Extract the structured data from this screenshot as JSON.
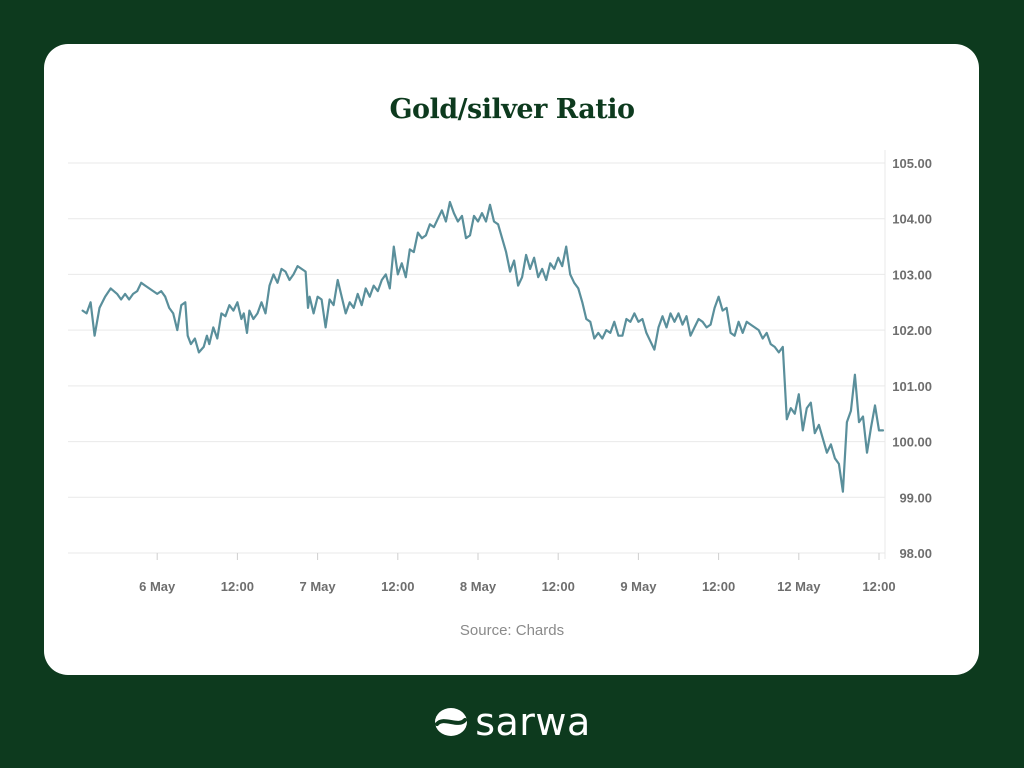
{
  "source": "Source: Chards",
  "brand": {
    "name": "sarwa",
    "logo_icon": "sarwa-logo-icon"
  },
  "colors": {
    "background": "#0d3a1e",
    "card": "#ffffff",
    "title": "#0d3a1e",
    "line": "#5a8f9b",
    "grid": "#e9e9e9",
    "tick_text": "#6e6e6e"
  },
  "chart_data": {
    "type": "line",
    "title": "Gold/silver Ratio",
    "xlabel": "",
    "ylabel": "",
    "y_axis_position": "right",
    "grid": true,
    "ylim": [
      98,
      105
    ],
    "yticks": [
      "98.00",
      "99.00",
      "100.00",
      "101.00",
      "102.00",
      "103.00",
      "104.00",
      "105.00"
    ],
    "xlim": [
      0,
      10
    ],
    "xticks": [
      {
        "label": "6 May",
        "x": 1.0
      },
      {
        "label": "12:00",
        "x": 2.0
      },
      {
        "label": "7 May",
        "x": 3.0
      },
      {
        "label": "12:00",
        "x": 4.0
      },
      {
        "label": "8 May",
        "x": 5.0
      },
      {
        "label": "12:00",
        "x": 6.0
      },
      {
        "label": "9 May",
        "x": 7.0
      },
      {
        "label": "12:00",
        "x": 8.0
      },
      {
        "label": "12 May",
        "x": 9.0
      },
      {
        "label": "12:00",
        "x": 10.0
      }
    ],
    "series": [
      {
        "values": [
          [
            0.07,
            102.35
          ],
          [
            0.12,
            102.3
          ],
          [
            0.17,
            102.5
          ],
          [
            0.22,
            101.9
          ],
          [
            0.28,
            102.4
          ],
          [
            0.35,
            102.6
          ],
          [
            0.42,
            102.75
          ],
          [
            0.5,
            102.65
          ],
          [
            0.55,
            102.55
          ],
          [
            0.6,
            102.65
          ],
          [
            0.65,
            102.55
          ],
          [
            0.7,
            102.65
          ],
          [
            0.75,
            102.7
          ],
          [
            0.8,
            102.85
          ],
          [
            0.85,
            102.8
          ],
          [
            0.9,
            102.75
          ],
          [
            0.95,
            102.7
          ],
          [
            1.0,
            102.65
          ],
          [
            1.05,
            102.7
          ],
          [
            1.1,
            102.6
          ],
          [
            1.15,
            102.4
          ],
          [
            1.2,
            102.3
          ],
          [
            1.25,
            102.0
          ],
          [
            1.3,
            102.45
          ],
          [
            1.35,
            102.5
          ],
          [
            1.38,
            101.9
          ],
          [
            1.42,
            101.75
          ],
          [
            1.47,
            101.85
          ],
          [
            1.52,
            101.6
          ],
          [
            1.58,
            101.7
          ],
          [
            1.62,
            101.9
          ],
          [
            1.65,
            101.75
          ],
          [
            1.7,
            102.05
          ],
          [
            1.75,
            101.85
          ],
          [
            1.8,
            102.3
          ],
          [
            1.85,
            102.25
          ],
          [
            1.9,
            102.45
          ],
          [
            1.95,
            102.35
          ],
          [
            2.0,
            102.5
          ],
          [
            2.05,
            102.2
          ],
          [
            2.08,
            102.3
          ],
          [
            2.12,
            101.95
          ],
          [
            2.15,
            102.35
          ],
          [
            2.2,
            102.2
          ],
          [
            2.25,
            102.3
          ],
          [
            2.3,
            102.5
          ],
          [
            2.35,
            102.3
          ],
          [
            2.4,
            102.8
          ],
          [
            2.45,
            103.0
          ],
          [
            2.5,
            102.85
          ],
          [
            2.55,
            103.1
          ],
          [
            2.6,
            103.05
          ],
          [
            2.65,
            102.9
          ],
          [
            2.7,
            103.0
          ],
          [
            2.75,
            103.15
          ],
          [
            2.8,
            103.1
          ],
          [
            2.85,
            103.05
          ],
          [
            2.88,
            102.4
          ],
          [
            2.9,
            102.6
          ],
          [
            2.95,
            102.3
          ],
          [
            3.0,
            102.6
          ],
          [
            3.05,
            102.55
          ],
          [
            3.1,
            102.05
          ],
          [
            3.15,
            102.55
          ],
          [
            3.2,
            102.45
          ],
          [
            3.25,
            102.9
          ],
          [
            3.3,
            102.6
          ],
          [
            3.35,
            102.3
          ],
          [
            3.4,
            102.5
          ],
          [
            3.45,
            102.4
          ],
          [
            3.5,
            102.65
          ],
          [
            3.55,
            102.45
          ],
          [
            3.6,
            102.75
          ],
          [
            3.65,
            102.6
          ],
          [
            3.7,
            102.8
          ],
          [
            3.75,
            102.7
          ],
          [
            3.8,
            102.9
          ],
          [
            3.85,
            103.0
          ],
          [
            3.9,
            102.75
          ],
          [
            3.95,
            103.5
          ],
          [
            4.0,
            103.0
          ],
          [
            4.05,
            103.2
          ],
          [
            4.1,
            102.95
          ],
          [
            4.15,
            103.45
          ],
          [
            4.2,
            103.4
          ],
          [
            4.25,
            103.75
          ],
          [
            4.3,
            103.65
          ],
          [
            4.35,
            103.7
          ],
          [
            4.4,
            103.9
          ],
          [
            4.45,
            103.85
          ],
          [
            4.5,
            104.0
          ],
          [
            4.55,
            104.15
          ],
          [
            4.6,
            103.95
          ],
          [
            4.65,
            104.3
          ],
          [
            4.7,
            104.1
          ],
          [
            4.75,
            103.95
          ],
          [
            4.8,
            104.05
          ],
          [
            4.85,
            103.65
          ],
          [
            4.9,
            103.7
          ],
          [
            4.95,
            104.05
          ],
          [
            5.0,
            103.95
          ],
          [
            5.05,
            104.1
          ],
          [
            5.1,
            103.95
          ],
          [
            5.15,
            104.25
          ],
          [
            5.2,
            103.95
          ],
          [
            5.25,
            103.9
          ],
          [
            5.3,
            103.65
          ],
          [
            5.35,
            103.4
          ],
          [
            5.4,
            103.05
          ],
          [
            5.45,
            103.25
          ],
          [
            5.5,
            102.8
          ],
          [
            5.55,
            102.95
          ],
          [
            5.6,
            103.35
          ],
          [
            5.65,
            103.1
          ],
          [
            5.7,
            103.3
          ],
          [
            5.75,
            102.95
          ],
          [
            5.8,
            103.1
          ],
          [
            5.85,
            102.9
          ],
          [
            5.9,
            103.2
          ],
          [
            5.95,
            103.1
          ],
          [
            6.0,
            103.3
          ],
          [
            6.05,
            103.15
          ],
          [
            6.1,
            103.5
          ],
          [
            6.15,
            103.0
          ],
          [
            6.2,
            102.85
          ],
          [
            6.25,
            102.75
          ],
          [
            6.3,
            102.5
          ],
          [
            6.35,
            102.2
          ],
          [
            6.4,
            102.15
          ],
          [
            6.45,
            101.85
          ],
          [
            6.5,
            101.95
          ],
          [
            6.55,
            101.85
          ],
          [
            6.6,
            102.0
          ],
          [
            6.65,
            101.95
          ],
          [
            6.7,
            102.15
          ],
          [
            6.75,
            101.9
          ],
          [
            6.8,
            101.9
          ],
          [
            6.85,
            102.2
          ],
          [
            6.9,
            102.15
          ],
          [
            6.95,
            102.3
          ],
          [
            7.0,
            102.15
          ],
          [
            7.05,
            102.2
          ],
          [
            7.1,
            101.95
          ],
          [
            7.15,
            101.8
          ],
          [
            7.2,
            101.65
          ],
          [
            7.25,
            102.05
          ],
          [
            7.3,
            102.25
          ],
          [
            7.35,
            102.05
          ],
          [
            7.4,
            102.3
          ],
          [
            7.45,
            102.15
          ],
          [
            7.5,
            102.3
          ],
          [
            7.55,
            102.1
          ],
          [
            7.6,
            102.25
          ],
          [
            7.65,
            101.9
          ],
          [
            7.7,
            102.05
          ],
          [
            7.75,
            102.2
          ],
          [
            7.8,
            102.15
          ],
          [
            7.85,
            102.05
          ],
          [
            7.9,
            102.1
          ],
          [
            7.95,
            102.4
          ],
          [
            8.0,
            102.6
          ],
          [
            8.05,
            102.35
          ],
          [
            8.1,
            102.4
          ],
          [
            8.15,
            101.95
          ],
          [
            8.2,
            101.9
          ],
          [
            8.25,
            102.15
          ],
          [
            8.3,
            101.95
          ],
          [
            8.35,
            102.15
          ],
          [
            8.4,
            102.1
          ],
          [
            8.45,
            102.05
          ],
          [
            8.5,
            102.0
          ],
          [
            8.55,
            101.85
          ],
          [
            8.6,
            101.95
          ],
          [
            8.65,
            101.75
          ],
          [
            8.7,
            101.7
          ],
          [
            8.75,
            101.6
          ],
          [
            8.8,
            101.7
          ],
          [
            8.85,
            100.4
          ],
          [
            8.9,
            100.6
          ],
          [
            8.95,
            100.5
          ],
          [
            9.0,
            100.85
          ],
          [
            9.05,
            100.2
          ],
          [
            9.1,
            100.6
          ],
          [
            9.15,
            100.7
          ],
          [
            9.2,
            100.15
          ],
          [
            9.25,
            100.3
          ],
          [
            9.3,
            100.05
          ],
          [
            9.35,
            99.8
          ],
          [
            9.4,
            99.95
          ],
          [
            9.45,
            99.7
          ],
          [
            9.5,
            99.6
          ],
          [
            9.55,
            99.1
          ],
          [
            9.6,
            100.35
          ],
          [
            9.65,
            100.55
          ],
          [
            9.7,
            101.2
          ],
          [
            9.75,
            100.35
          ],
          [
            9.8,
            100.45
          ],
          [
            9.85,
            99.8
          ],
          [
            9.9,
            100.25
          ],
          [
            9.95,
            100.65
          ],
          [
            10.0,
            100.2
          ],
          [
            10.05,
            100.2
          ]
        ]
      }
    ]
  }
}
